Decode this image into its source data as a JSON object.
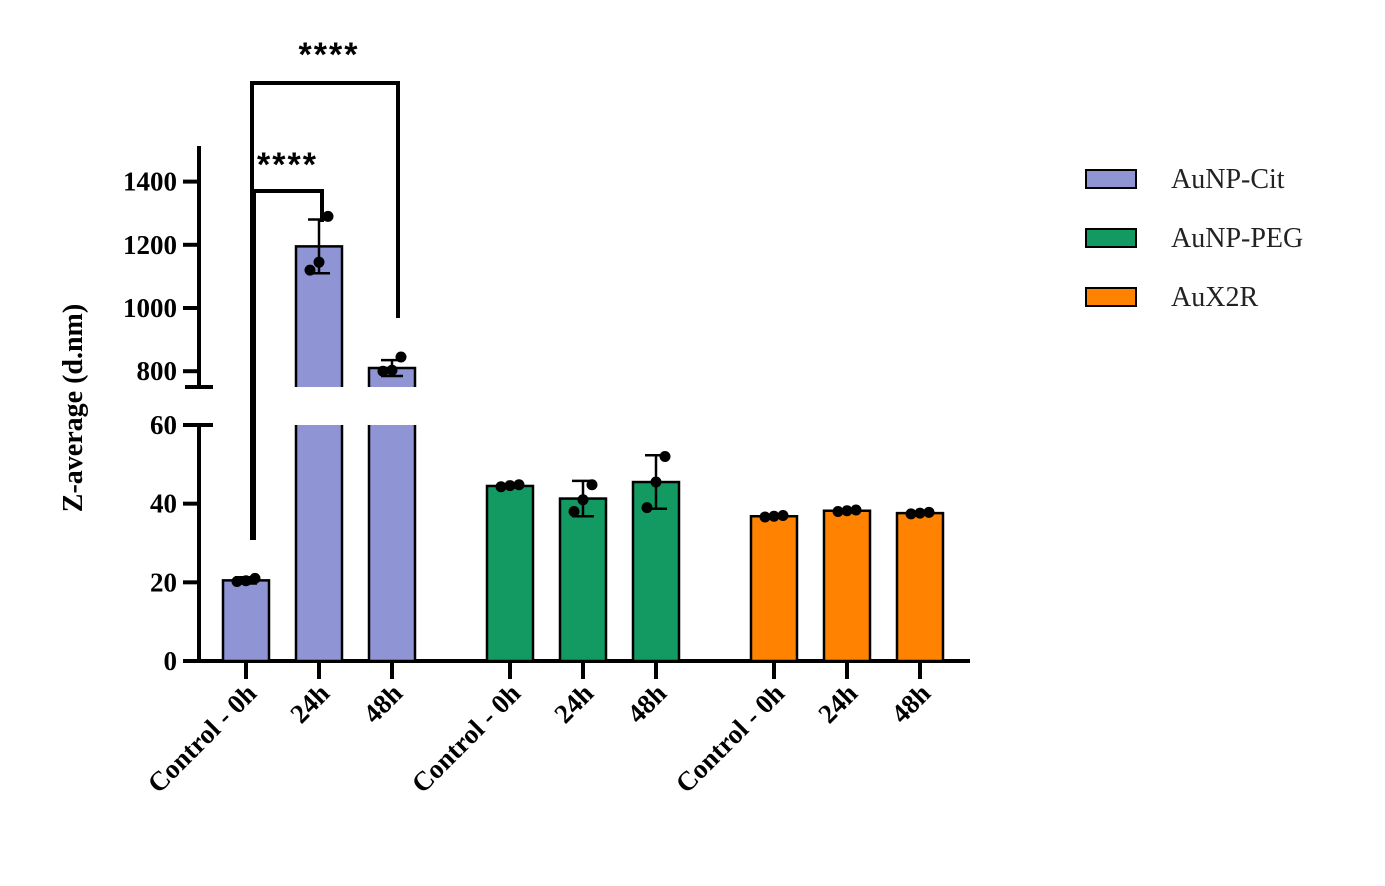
{
  "chart_data": {
    "type": "bar",
    "ylabel": "Z-average (d.nm)",
    "y_axis_break": true,
    "y_lower_range": [
      0,
      60
    ],
    "y_upper_range": [
      750,
      1500
    ],
    "y_lower_ticks": [
      "0",
      "20",
      "40",
      "60"
    ],
    "y_upper_ticks": [
      "800",
      "1000",
      "1200",
      "1400"
    ],
    "legend_position": "right",
    "groups": [
      {
        "name": "AuNP-Cit",
        "color": "#8f94d4",
        "bars": [
          {
            "label": "Control - 0h",
            "value": 20.5,
            "error": 0.8,
            "points": [
              20.2,
              20.4,
              21.0
            ]
          },
          {
            "label": "24h",
            "value": 1195,
            "error": 85,
            "points": [
              1120,
              1145,
              1290
            ]
          },
          {
            "label": "48h",
            "value": 810,
            "error": 25,
            "points": [
              800,
              803,
              845
            ]
          }
        ]
      },
      {
        "name": "AuNP-PEG",
        "color": "#139a63",
        "bars": [
          {
            "label": "Control - 0h",
            "value": 44.5,
            "error": 0.4,
            "points": [
              44.3,
              44.6,
              44.8
            ]
          },
          {
            "label": "24h",
            "value": 41.3,
            "error": 4.5,
            "points": [
              38.0,
              41.0,
              44.8
            ]
          },
          {
            "label": "48h",
            "value": 45.5,
            "error": 6.8,
            "points": [
              39.0,
              45.5,
              52.0
            ]
          }
        ]
      },
      {
        "name": "AuX2R",
        "color": "#ff8300",
        "bars": [
          {
            "label": "Control - 0h",
            "value": 36.8,
            "error": 0.3,
            "points": [
              36.6,
              36.8,
              37.0
            ]
          },
          {
            "label": "24h",
            "value": 38.2,
            "error": 0.3,
            "points": [
              38.0,
              38.2,
              38.4
            ]
          },
          {
            "label": "48h",
            "value": 37.6,
            "error": 0.3,
            "points": [
              37.4,
              37.6,
              37.8
            ]
          }
        ]
      }
    ],
    "annotations": [
      {
        "text": "****",
        "from": "AuNP-Cit Control - 0h",
        "to": "24h"
      },
      {
        "text": "****",
        "from": "AuNP-Cit Control - 0h",
        "to": "48h"
      }
    ]
  }
}
